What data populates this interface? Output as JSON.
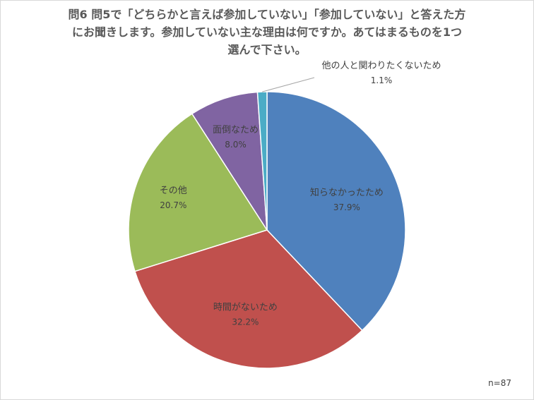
{
  "title": {
    "line1": "問6  問5で「どちらかと言えば参加していない」「参加していない」と答えた方",
    "line2": "にお聞きします。参加していない主な理由は何ですか。あてはまるものを1つ",
    "line3": "選んで下さい。"
  },
  "sample_size": "n=87",
  "chart_data": {
    "type": "pie",
    "title": "問6  問5で「どちらかと言えば参加していない」「参加していない」と答えた方にお聞きします。参加していない主な理由は何ですか。あてはまるものを1つ選んで下さい。",
    "slices": [
      {
        "label": "知らなかったため",
        "value": 37.9,
        "value_label": "37.9%",
        "color": "#4f81bd"
      },
      {
        "label": "時間がないため",
        "value": 32.2,
        "value_label": "32.2%",
        "color": "#c0504d"
      },
      {
        "label": "その他",
        "value": 20.7,
        "value_label": "20.7%",
        "color": "#9bbb59"
      },
      {
        "label": "面倒なため",
        "value": 8.0,
        "value_label": "8.0%",
        "color": "#8064a2"
      },
      {
        "label": "他の人と関わりたくないため",
        "value": 1.1,
        "value_label": "1.1%",
        "color": "#4bacc6"
      }
    ],
    "start_angle": "12 o'clock",
    "direction": "clockwise",
    "legend": "none"
  }
}
